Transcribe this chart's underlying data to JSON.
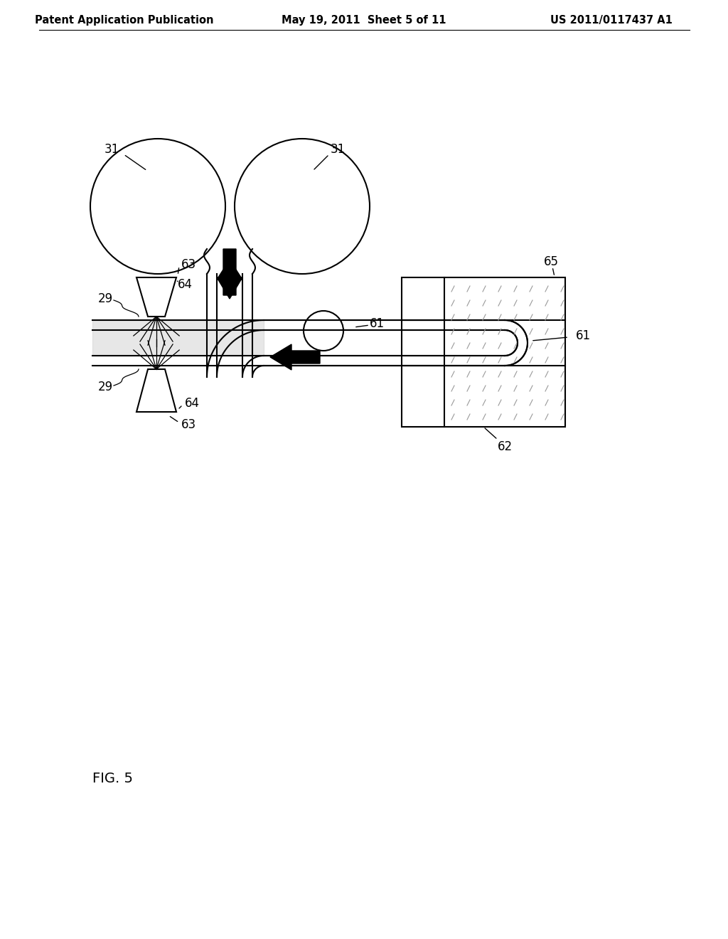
{
  "header_left": "Patent Application Publication",
  "header_mid": "May 19, 2011  Sheet 5 of 11",
  "header_right": "US 2011/0117437 A1",
  "fig_label": "FIG. 5",
  "bg_color": "#ffffff",
  "line_color": "#000000",
  "label_fontsize": 12,
  "header_fontsize": 10.5,
  "hatch_color": "#aaaaaa"
}
